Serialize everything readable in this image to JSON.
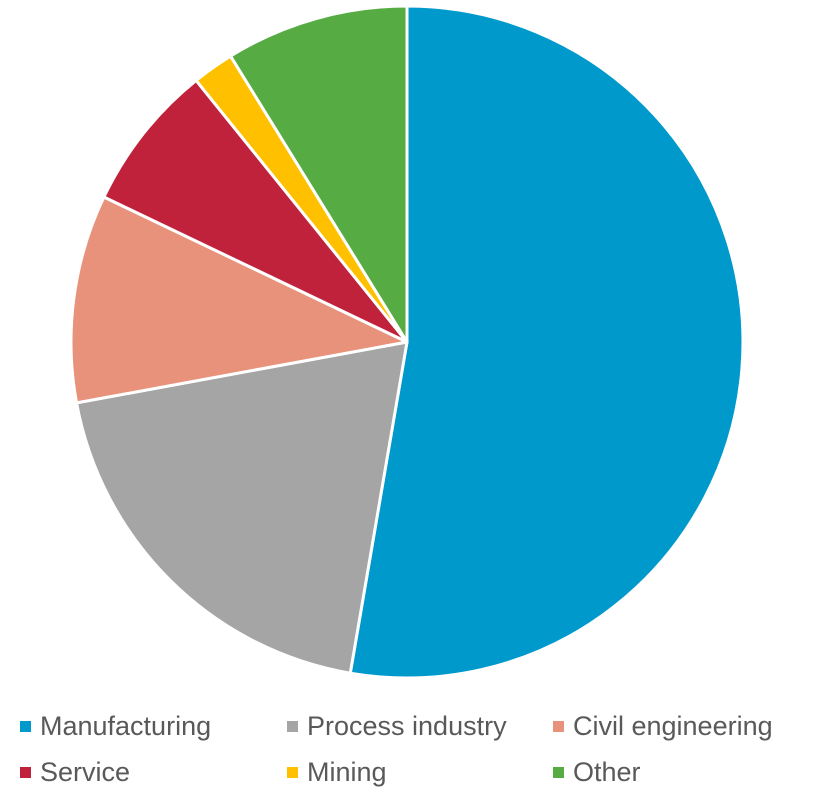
{
  "chart_data": {
    "type": "pie",
    "title": "",
    "start_angle_deg": 0,
    "direction": "clockwise",
    "legend_position": "bottom",
    "slices": [
      {
        "label": "Manufacturing",
        "value": 52.7,
        "color": "#0099CC"
      },
      {
        "label": "Process industry",
        "value": 19.4,
        "color": "#A5A5A5"
      },
      {
        "label": "Civil engineering",
        "value": 10.0,
        "color": "#E8927C"
      },
      {
        "label": "Service",
        "value": 7.1,
        "color": "#C0223C"
      },
      {
        "label": "Mining",
        "value": 2.0,
        "color": "#FFC000"
      },
      {
        "label": "Other",
        "value": 8.8,
        "color": "#56AB43"
      }
    ]
  }
}
